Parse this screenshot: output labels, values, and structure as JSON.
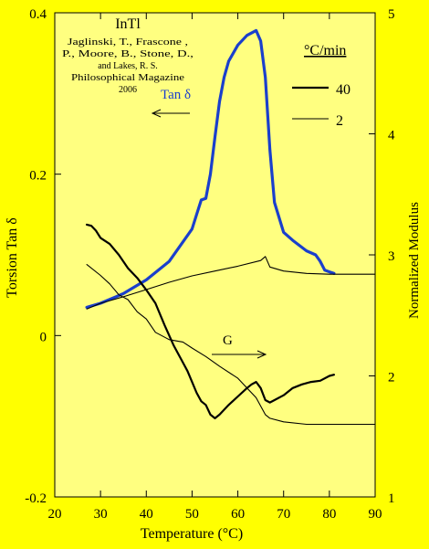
{
  "colors": {
    "page_background": "#ffff00",
    "plot_background": "#ffff80",
    "tan_delta_40": "#1a3fcc",
    "ink": "#000000"
  },
  "annotations": {
    "title": "InTl",
    "citation": [
      "Jaglinski, T., Frascone ,",
      "P., Moore, B., Stone, D.,",
      "and Lakes, R. S.",
      "Philosophical Magazine",
      "2006"
    ],
    "tan_label": "Tan δ",
    "g_label": "G",
    "rate_header": "°C/min",
    "rate_fast": "40",
    "rate_slow": "2"
  },
  "chart_data": {
    "type": "line",
    "xlabel": "Temperature (°C)",
    "ylabel_left": "Torsion Tan δ",
    "ylabel_right": "Normalized Modulus",
    "xlim": [
      20,
      90
    ],
    "ylim_left": [
      -0.2,
      0.4
    ],
    "ylim_right": [
      1,
      5
    ],
    "x_ticks": [
      "20",
      "30",
      "40",
      "50",
      "60",
      "70",
      "80",
      "90"
    ],
    "y_left_ticks": [
      "-0.2",
      "0",
      "0.2",
      "0.4"
    ],
    "y_right_ticks": [
      "1",
      "2",
      "3",
      "4",
      "5"
    ],
    "grid": false,
    "legend": "top-right",
    "series": [
      {
        "name": "Tan δ, 40 °C/min",
        "axis": "left",
        "x": [
          27,
          30,
          35,
          40,
          45,
          50,
          51,
          52,
          53,
          54,
          55,
          56,
          57,
          58,
          60,
          62,
          64,
          65,
          66,
          67,
          68,
          70,
          72,
          75,
          77,
          78,
          79,
          80,
          81
        ],
        "y": [
          0.035,
          0.04,
          0.052,
          0.069,
          0.092,
          0.132,
          0.15,
          0.168,
          0.17,
          0.2,
          0.246,
          0.29,
          0.32,
          0.34,
          0.36,
          0.372,
          0.378,
          0.365,
          0.32,
          0.23,
          0.165,
          0.128,
          0.118,
          0.105,
          0.1,
          0.092,
          0.081,
          0.079,
          0.077
        ]
      },
      {
        "name": "Tan δ, 2 °C/min",
        "axis": "left",
        "x": [
          27,
          30,
          35,
          40,
          45,
          50,
          55,
          60,
          65,
          66,
          67,
          70,
          75,
          80,
          90
        ],
        "y": [
          0.033,
          0.04,
          0.048,
          0.057,
          0.066,
          0.074,
          0.08,
          0.086,
          0.093,
          0.098,
          0.085,
          0.08,
          0.077,
          0.076,
          0.076
        ]
      },
      {
        "name": "G, 40 °C/min",
        "axis": "right",
        "x": [
          27,
          28,
          29,
          30,
          32,
          34,
          36,
          38,
          40,
          42,
          44,
          46,
          48,
          49,
          50,
          51,
          52,
          53,
          54,
          55,
          56,
          58,
          60,
          62,
          63,
          64,
          65,
          66,
          67,
          68,
          70,
          72,
          74,
          76,
          78,
          80,
          81
        ],
        "y": [
          3.25,
          3.24,
          3.2,
          3.14,
          3.09,
          3.0,
          2.89,
          2.81,
          2.71,
          2.6,
          2.42,
          2.25,
          2.11,
          2.04,
          1.95,
          1.86,
          1.79,
          1.76,
          1.68,
          1.65,
          1.68,
          1.76,
          1.83,
          1.9,
          1.93,
          1.95,
          1.9,
          1.8,
          1.78,
          1.8,
          1.84,
          1.9,
          1.93,
          1.95,
          1.96,
          2.0,
          2.01
        ]
      },
      {
        "name": "G, 2 °C/min",
        "axis": "right",
        "x": [
          27,
          30,
          32,
          34,
          36,
          38,
          40,
          42,
          45,
          48,
          50,
          53,
          56,
          60,
          64,
          66,
          67,
          70,
          75,
          80,
          90
        ],
        "y": [
          2.92,
          2.83,
          2.76,
          2.67,
          2.63,
          2.53,
          2.47,
          2.36,
          2.3,
          2.28,
          2.23,
          2.16,
          2.08,
          1.98,
          1.82,
          1.68,
          1.65,
          1.62,
          1.6,
          1.6,
          1.6
        ]
      }
    ]
  }
}
